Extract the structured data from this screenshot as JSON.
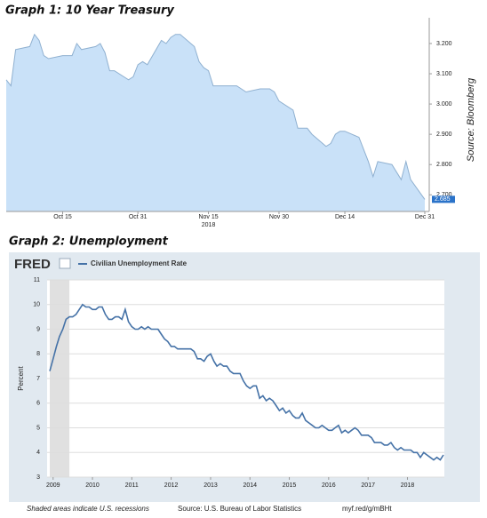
{
  "chart_data": [
    {
      "type": "area",
      "title": "Graph 1: 10 Year Treasury",
      "source": "Source: Bloomberg",
      "color": "#c9e1f8",
      "line_color": "#8fb0d0",
      "y_axis": "right",
      "x": [
        "2018-10-03",
        "2018-10-04",
        "2018-10-05",
        "2018-10-08",
        "2018-10-09",
        "2018-10-10",
        "2018-10-11",
        "2018-10-12",
        "2018-10-15",
        "2018-10-16",
        "2018-10-17",
        "2018-10-18",
        "2018-10-19",
        "2018-10-22",
        "2018-10-23",
        "2018-10-24",
        "2018-10-25",
        "2018-10-26",
        "2018-10-29",
        "2018-10-30",
        "2018-10-31",
        "2018-11-01",
        "2018-11-02",
        "2018-11-05",
        "2018-11-06",
        "2018-11-07",
        "2018-11-08",
        "2018-11-09",
        "2018-11-12",
        "2018-11-13",
        "2018-11-14",
        "2018-11-15",
        "2018-11-16",
        "2018-11-19",
        "2018-11-20",
        "2018-11-21",
        "2018-11-23",
        "2018-11-26",
        "2018-11-27",
        "2018-11-28",
        "2018-11-29",
        "2018-11-30",
        "2018-12-03",
        "2018-12-04",
        "2018-12-06",
        "2018-12-07",
        "2018-12-10",
        "2018-12-11",
        "2018-12-12",
        "2018-12-13",
        "2018-12-14",
        "2018-12-17",
        "2018-12-18",
        "2018-12-19",
        "2018-12-20",
        "2018-12-21",
        "2018-12-24",
        "2018-12-26",
        "2018-12-27",
        "2018-12-28",
        "2018-12-31"
      ],
      "values": [
        3.08,
        3.06,
        3.18,
        3.19,
        3.23,
        3.21,
        3.16,
        3.15,
        3.16,
        3.16,
        3.16,
        3.2,
        3.18,
        3.19,
        3.2,
        3.17,
        3.11,
        3.11,
        3.08,
        3.09,
        3.13,
        3.14,
        3.13,
        3.21,
        3.2,
        3.22,
        3.23,
        3.23,
        3.19,
        3.14,
        3.12,
        3.11,
        3.06,
        3.06,
        3.06,
        3.06,
        3.04,
        3.05,
        3.05,
        3.05,
        3.04,
        3.01,
        2.98,
        2.92,
        2.92,
        2.9,
        2.86,
        2.87,
        2.9,
        2.91,
        2.91,
        2.89,
        2.85,
        2.81,
        2.76,
        2.81,
        2.8,
        2.75,
        2.81,
        2.75,
        2.685
      ],
      "xlim": [
        "2018-10-03",
        "2018-12-31"
      ],
      "xticks": [
        {
          "value": "2018-10-15",
          "label": "Oct 15"
        },
        {
          "value": "2018-10-31",
          "label": "Oct 31"
        },
        {
          "value": "2018-11-15",
          "label": "Nov 15\n2018"
        },
        {
          "value": "2018-11-30",
          "label": "Nov 30"
        },
        {
          "value": "2018-12-14",
          "label": "Dec 14"
        },
        {
          "value": "2018-12-31",
          "label": "Dec 31"
        }
      ],
      "ylim": [
        2.645,
        3.285
      ],
      "yticks": [
        {
          "value": 2.7,
          "label": "2.700"
        },
        {
          "value": 2.8,
          "label": "2.800"
        },
        {
          "value": 2.9,
          "label": "2.900"
        },
        {
          "value": 3.0,
          "label": "3.000"
        },
        {
          "value": 3.1,
          "label": "3.100"
        },
        {
          "value": 3.2,
          "label": "3.200"
        }
      ]
    },
    {
      "type": "line",
      "title": "Graph 2: Unemployment",
      "logo": "FRED",
      "ylabel": "Percent",
      "note": "Shaded areas indicate U.S. recessions",
      "source": "Source: U.S. Bureau of Labor Statistics",
      "link": "myf.red/g/mBHt",
      "recessions": [
        [
          "2008-12",
          "2009-06"
        ]
      ],
      "grid": true,
      "x": [
        "2008-12",
        "2009-01",
        "2009-02",
        "2009-03",
        "2009-04",
        "2009-05",
        "2009-06",
        "2009-07",
        "2009-08",
        "2009-09",
        "2009-10",
        "2009-11",
        "2009-12",
        "2010-01",
        "2010-02",
        "2010-03",
        "2010-04",
        "2010-05",
        "2010-06",
        "2010-07",
        "2010-08",
        "2010-09",
        "2010-10",
        "2010-11",
        "2010-12",
        "2011-01",
        "2011-02",
        "2011-03",
        "2011-04",
        "2011-05",
        "2011-06",
        "2011-07",
        "2011-08",
        "2011-09",
        "2011-10",
        "2011-11",
        "2011-12",
        "2012-01",
        "2012-02",
        "2012-03",
        "2012-04",
        "2012-05",
        "2012-06",
        "2012-07",
        "2012-08",
        "2012-09",
        "2012-10",
        "2012-11",
        "2012-12",
        "2013-01",
        "2013-02",
        "2013-03",
        "2013-04",
        "2013-05",
        "2013-06",
        "2013-07",
        "2013-08",
        "2013-09",
        "2013-10",
        "2013-11",
        "2013-12",
        "2014-01",
        "2014-02",
        "2014-03",
        "2014-04",
        "2014-05",
        "2014-06",
        "2014-07",
        "2014-08",
        "2014-09",
        "2014-10",
        "2014-11",
        "2014-12",
        "2015-01",
        "2015-02",
        "2015-03",
        "2015-04",
        "2015-05",
        "2015-06",
        "2015-07",
        "2015-08",
        "2015-09",
        "2015-10",
        "2015-11",
        "2015-12",
        "2016-01",
        "2016-02",
        "2016-03",
        "2016-04",
        "2016-05",
        "2016-06",
        "2016-07",
        "2016-08",
        "2016-09",
        "2016-10",
        "2016-11",
        "2016-12",
        "2017-01",
        "2017-02",
        "2017-03",
        "2017-04",
        "2017-05",
        "2017-06",
        "2017-07",
        "2017-08",
        "2017-09",
        "2017-10",
        "2017-11",
        "2017-12",
        "2018-01",
        "2018-02",
        "2018-03",
        "2018-04",
        "2018-05",
        "2018-06",
        "2018-07",
        "2018-08",
        "2018-09",
        "2018-10",
        "2018-11",
        "2018-12"
      ],
      "series": [
        {
          "name": "Civilian Unemployment Rate",
          "color": "#4572a7",
          "values": [
            7.3,
            7.8,
            8.3,
            8.7,
            9.0,
            9.4,
            9.5,
            9.5,
            9.6,
            9.8,
            10.0,
            9.9,
            9.9,
            9.8,
            9.8,
            9.9,
            9.9,
            9.6,
            9.4,
            9.4,
            9.5,
            9.5,
            9.4,
            9.8,
            9.3,
            9.1,
            9.0,
            9.0,
            9.1,
            9.0,
            9.1,
            9.0,
            9.0,
            9.0,
            8.8,
            8.6,
            8.5,
            8.3,
            8.3,
            8.2,
            8.2,
            8.2,
            8.2,
            8.2,
            8.1,
            7.8,
            7.8,
            7.7,
            7.9,
            8.0,
            7.7,
            7.5,
            7.6,
            7.5,
            7.5,
            7.3,
            7.2,
            7.2,
            7.2,
            6.9,
            6.7,
            6.6,
            6.7,
            6.7,
            6.2,
            6.3,
            6.1,
            6.2,
            6.1,
            5.9,
            5.7,
            5.8,
            5.6,
            5.7,
            5.5,
            5.4,
            5.4,
            5.6,
            5.3,
            5.2,
            5.1,
            5.0,
            5.0,
            5.1,
            5.0,
            4.9,
            4.9,
            5.0,
            5.1,
            4.8,
            4.9,
            4.8,
            4.9,
            5.0,
            4.9,
            4.7,
            4.7,
            4.7,
            4.6,
            4.4,
            4.4,
            4.4,
            4.3,
            4.3,
            4.4,
            4.2,
            4.1,
            4.2,
            4.1,
            4.1,
            4.1,
            4.0,
            4.0,
            3.8,
            4.0,
            3.9,
            3.8,
            3.7,
            3.8,
            3.7,
            3.9
          ]
        }
      ],
      "xlim": [
        "2008-12",
        "2018-12"
      ],
      "xticks": [
        {
          "value": "2009-01",
          "label": "2009"
        },
        {
          "value": "2010-01",
          "label": "2010"
        },
        {
          "value": "2011-01",
          "label": "2011"
        },
        {
          "value": "2012-01",
          "label": "2012"
        },
        {
          "value": "2013-01",
          "label": "2013"
        },
        {
          "value": "2014-01",
          "label": "2014"
        },
        {
          "value": "2015-01",
          "label": "2015"
        },
        {
          "value": "2016-01",
          "label": "2016"
        },
        {
          "value": "2017-01",
          "label": "2017"
        },
        {
          "value": "2018-01",
          "label": "2018"
        }
      ],
      "ylim": [
        3,
        11
      ],
      "yticks": [
        3,
        4,
        5,
        6,
        7,
        8,
        9,
        10,
        11
      ]
    }
  ]
}
